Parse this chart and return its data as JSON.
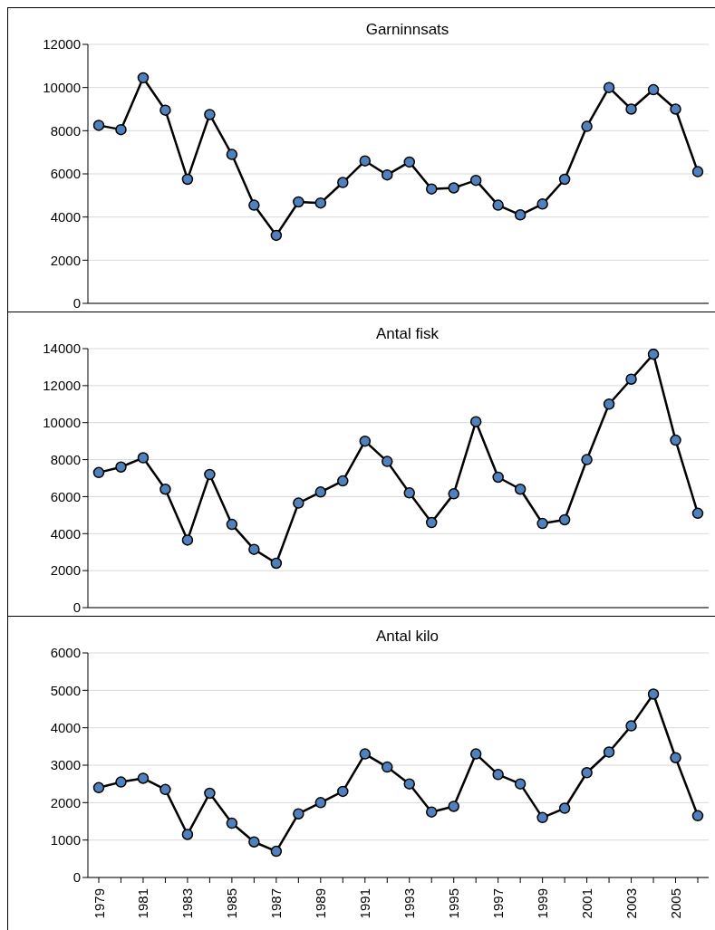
{
  "chart_data": [
    {
      "type": "line",
      "title": "Garninnsats",
      "categories": [
        "1979",
        null,
        "1981",
        null,
        "1983",
        null,
        "1985",
        null,
        "1987",
        null,
        "1989",
        null,
        "1991",
        null,
        "1993",
        null,
        "1995",
        null,
        "1997",
        null,
        "1999",
        null,
        "2001",
        null,
        "2003",
        null,
        "2005",
        null
      ],
      "tick_labels": "y",
      "series": [
        {
          "color": "#4f81bd",
          "values": [
            8250,
            8050,
            10450,
            8950,
            5750,
            8750,
            6900,
            4550,
            3150,
            4700,
            4650,
            5600,
            6600,
            5950,
            6550,
            5300,
            5350,
            5700,
            4550,
            4100,
            4600,
            5750,
            8200,
            10000,
            9000,
            9900,
            9000,
            6100
          ]
        }
      ],
      "ylim": [
        0,
        12000
      ],
      "yticks": [
        0,
        2000,
        4000,
        6000,
        8000,
        10000,
        12000
      ],
      "grid": "y",
      "marker": "circle",
      "line_style": "solid",
      "legend": false
    },
    {
      "type": "line",
      "title": "Antal fisk",
      "categories": [
        "1979",
        null,
        "1981",
        null,
        "1983",
        null,
        "1985",
        null,
        "1987",
        null,
        "1989",
        null,
        "1991",
        null,
        "1993",
        null,
        "1995",
        null,
        "1997",
        null,
        "1999",
        null,
        "2001",
        null,
        "2003",
        null,
        "2005",
        null
      ],
      "tick_labels": "y",
      "series": [
        {
          "color": "#4f81bd",
          "values": [
            7300,
            7600,
            8100,
            6400,
            3650,
            7200,
            4500,
            3150,
            2400,
            5650,
            6250,
            6850,
            9000,
            7900,
            6200,
            4600,
            6150,
            10050,
            7050,
            6400,
            4550,
            4750,
            8000,
            11000,
            12350,
            13700,
            9050,
            5100
          ]
        }
      ],
      "ylim": [
        0,
        14000
      ],
      "yticks": [
        0,
        2000,
        4000,
        6000,
        8000,
        10000,
        12000,
        14000
      ],
      "grid": "y",
      "marker": "circle",
      "line_style": "solid",
      "legend": false
    },
    {
      "type": "line",
      "title": "Antal kilo",
      "categories": [
        "1979",
        null,
        "1981",
        null,
        "1983",
        null,
        "1985",
        null,
        "1987",
        null,
        "1989",
        null,
        "1991",
        null,
        "1993",
        null,
        "1995",
        null,
        "1997",
        null,
        "1999",
        null,
        "2001",
        null,
        "2003",
        null,
        "2005",
        null
      ],
      "series": [
        {
          "color": "#4f81bd",
          "values": [
            2400,
            2550,
            2650,
            2350,
            1150,
            2250,
            1450,
            950,
            700,
            1700,
            2000,
            2300,
            3300,
            2950,
            2500,
            1750,
            1900,
            3300,
            2750,
            2500,
            1600,
            1850,
            2800,
            3350,
            4050,
            4900,
            3200,
            1650
          ]
        }
      ],
      "ylim": [
        0,
        6000
      ],
      "yticks": [
        0,
        1000,
        2000,
        3000,
        4000,
        5000,
        6000
      ],
      "grid": "y",
      "marker": "circle",
      "line_style": "solid",
      "legend": false
    }
  ]
}
